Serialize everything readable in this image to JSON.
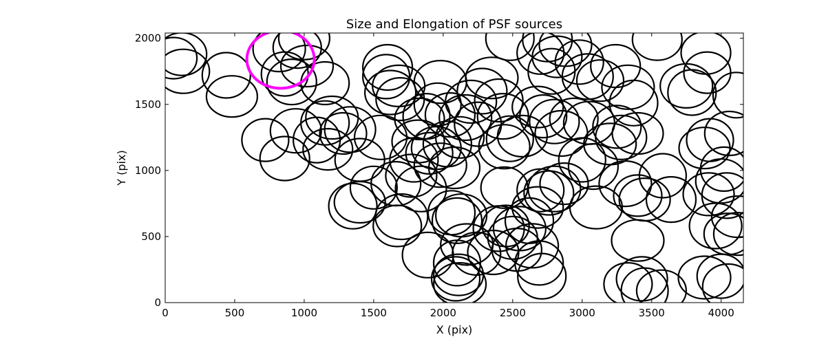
{
  "chart_data": {
    "type": "scatter",
    "title": "Size and Elongation of PSF sources",
    "xlabel": "X (pix)",
    "ylabel": "Y (pix)",
    "xlim": [
      0,
      4160
    ],
    "ylim": [
      0,
      2040
    ],
    "xticks": [
      0,
      500,
      1000,
      1500,
      2000,
      2500,
      3000,
      3500,
      4000
    ],
    "yticks": [
      0,
      500,
      1000,
      1500,
      2000
    ],
    "grid": false,
    "marker": "ellipse",
    "series": [
      {
        "color": "#000000",
        "points": [
          [
            60,
            1850
          ],
          [
            120,
            1880
          ],
          [
            130,
            1750
          ],
          [
            440,
            1720
          ],
          [
            480,
            1560
          ],
          [
            720,
            1230
          ],
          [
            860,
            1090
          ],
          [
            820,
            1920
          ],
          [
            950,
            1930
          ],
          [
            1000,
            2000
          ],
          [
            860,
            1730
          ],
          [
            910,
            1670
          ],
          [
            1020,
            1790
          ],
          [
            1150,
            1660
          ],
          [
            940,
            1300
          ],
          [
            1090,
            1230
          ],
          [
            1170,
            1160
          ],
          [
            1200,
            1400
          ],
          [
            1150,
            1360
          ],
          [
            1330,
            1310
          ],
          [
            1280,
            1280
          ],
          [
            1400,
            1080
          ],
          [
            1550,
            1250
          ],
          [
            1350,
            730
          ],
          [
            1400,
            760
          ],
          [
            1500,
            870
          ],
          [
            1660,
            900
          ],
          [
            1700,
            650
          ],
          [
            1670,
            580
          ],
          [
            1770,
            960
          ],
          [
            1590,
            1710
          ],
          [
            1600,
            1780
          ],
          [
            1680,
            1640
          ],
          [
            1690,
            1540
          ],
          [
            1620,
            1590
          ],
          [
            1880,
            1410
          ],
          [
            1830,
            1390
          ],
          [
            1820,
            1220
          ],
          [
            1790,
            1080
          ],
          [
            1840,
            860
          ],
          [
            1900,
            1130
          ],
          [
            1950,
            1170
          ],
          [
            1980,
            1040
          ],
          [
            2030,
            1200
          ],
          [
            2080,
            1020
          ],
          [
            1960,
            1500
          ],
          [
            2050,
            1420
          ],
          [
            2160,
            1400
          ],
          [
            2120,
            1250
          ],
          [
            2200,
            1520
          ],
          [
            2250,
            1350
          ],
          [
            2280,
            1600
          ],
          [
            2350,
            1700
          ],
          [
            2400,
            1530
          ],
          [
            2440,
            1180
          ],
          [
            2480,
            1240
          ],
          [
            2570,
            1260
          ],
          [
            1980,
            1670
          ],
          [
            2480,
            2000
          ],
          [
            2400,
            560
          ],
          [
            2450,
            580
          ],
          [
            2500,
            490
          ],
          [
            2550,
            560
          ],
          [
            2620,
            620
          ],
          [
            2680,
            720
          ],
          [
            2700,
            850
          ],
          [
            2760,
            830
          ],
          [
            2800,
            860
          ],
          [
            2870,
            900
          ],
          [
            2130,
            660
          ],
          [
            2060,
            680
          ],
          [
            2100,
            620
          ],
          [
            2170,
            440
          ],
          [
            2240,
            370
          ],
          [
            2360,
            380
          ],
          [
            2100,
            300
          ],
          [
            2110,
            210
          ],
          [
            2120,
            140
          ],
          [
            2090,
            180
          ],
          [
            1890,
            360
          ],
          [
            2440,
            870
          ],
          [
            2530,
            400
          ],
          [
            2640,
            430
          ],
          [
            2710,
            200
          ],
          [
            2680,
            1480
          ],
          [
            2720,
            1410
          ],
          [
            2800,
            1370
          ],
          [
            2850,
            1280
          ],
          [
            2940,
            1390
          ],
          [
            3050,
            1360
          ],
          [
            3000,
            1080
          ],
          [
            3080,
            1030
          ],
          [
            3200,
            1200
          ],
          [
            3250,
            1330
          ],
          [
            3280,
            1250
          ],
          [
            2780,
            1750
          ],
          [
            2820,
            1860
          ],
          [
            2880,
            1950
          ],
          [
            2980,
            1820
          ],
          [
            3040,
            1710
          ],
          [
            3130,
            1680
          ],
          [
            3240,
            1790
          ],
          [
            3330,
            1630
          ],
          [
            3370,
            1510
          ],
          [
            3400,
            1280
          ],
          [
            2700,
            1890
          ],
          [
            2750,
            1990
          ],
          [
            3310,
            900
          ],
          [
            3400,
            810
          ],
          [
            3450,
            780
          ],
          [
            3580,
            960
          ],
          [
            3640,
            780
          ],
          [
            3400,
            470
          ],
          [
            3330,
            140
          ],
          [
            3430,
            180
          ],
          [
            3450,
            90
          ],
          [
            3570,
            90
          ],
          [
            3880,
            190
          ],
          [
            4000,
            200
          ],
          [
            4050,
            120
          ],
          [
            3900,
            1740
          ],
          [
            3890,
            1890
          ],
          [
            3750,
            1640
          ],
          [
            3790,
            1590
          ],
          [
            3880,
            1170
          ],
          [
            3920,
            1230
          ],
          [
            4060,
            1280
          ],
          [
            3960,
            580
          ],
          [
            4050,
            520
          ],
          [
            3910,
            820
          ],
          [
            4020,
            1010
          ],
          [
            4040,
            810
          ],
          [
            4120,
            650
          ],
          [
            4120,
            520
          ],
          [
            4000,
            920
          ],
          [
            4110,
            1570
          ],
          [
            3540,
            1990
          ],
          [
            3100,
            720
          ],
          [
            2690,
            300
          ],
          [
            2430,
            1410
          ]
        ]
      },
      {
        "color": "#ff00ff",
        "points": [
          [
            830,
            1840
          ]
        ]
      }
    ]
  }
}
